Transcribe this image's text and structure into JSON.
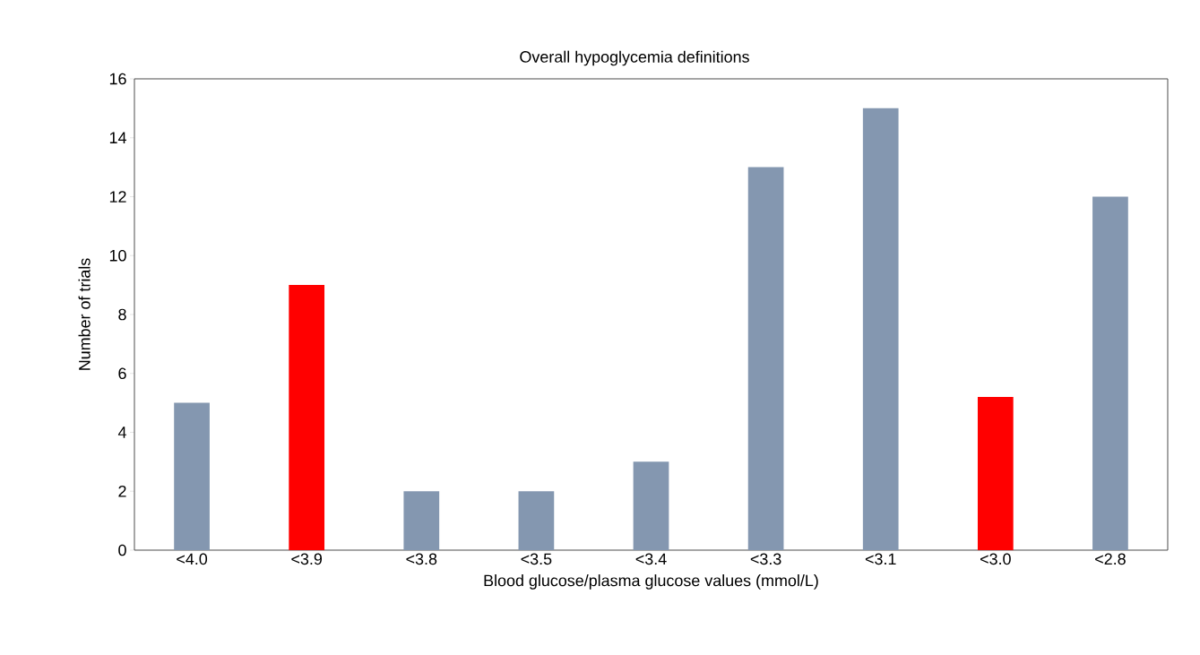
{
  "chart_data": {
    "type": "bar",
    "title": "Overall hypoglycemia definitions",
    "xlabel": "Blood glucose/plasma glucose values (mmol/L)",
    "ylabel": "Number of trials",
    "categories": [
      "<4.0",
      "<3.9",
      "<3.8",
      "<3.5",
      "<3.4",
      "<3.3",
      "<3.1",
      "<3.0",
      "<2.8"
    ],
    "values": [
      5,
      9,
      2,
      2,
      3,
      13,
      15,
      5.2,
      12
    ],
    "colors": [
      "#8497b0",
      "#ff0000",
      "#8497b0",
      "#8497b0",
      "#8497b0",
      "#8497b0",
      "#8497b0",
      "#ff0000",
      "#8497b0"
    ],
    "ylim": [
      0,
      16
    ],
    "yticks": [
      0,
      2,
      4,
      6,
      8,
      10,
      12,
      14,
      16
    ],
    "grid": false
  }
}
